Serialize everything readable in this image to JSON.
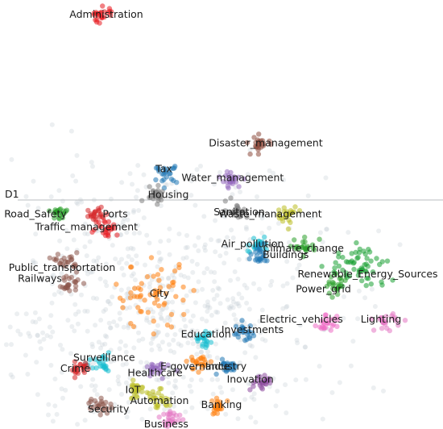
{
  "chart_data": {
    "type": "scatter",
    "title": "",
    "xlabel": "",
    "ylabel": "",
    "xlim": [
      -1.0,
      1.0
    ],
    "ylim": [
      -1.0,
      1.0
    ],
    "grid": false,
    "legend": "none",
    "axis_marker": {
      "label": "D1",
      "y": 0.0
    },
    "background_color": "#c9d2d6",
    "clusters": [
      {
        "name": "Administration",
        "color": "#e8191f",
        "x": -0.54,
        "y": 0.93,
        "label_x": -0.52,
        "label_y": 0.93
      },
      {
        "name": "Disaster_management",
        "color": "#8c4a3c",
        "x": 0.17,
        "y": 0.33,
        "label_x": 0.2,
        "label_y": 0.33
      },
      {
        "name": "Tax",
        "color": "#1f77b4",
        "x": -0.25,
        "y": 0.19,
        "label_x": -0.26,
        "label_y": 0.21
      },
      {
        "name": "Water_management",
        "color": "#9467bd",
        "x": 0.05,
        "y": 0.16,
        "label_x": 0.05,
        "label_y": 0.17
      },
      {
        "name": "Housing",
        "color": "#7f7f7f",
        "x": -0.3,
        "y": 0.1,
        "label_x": -0.24,
        "label_y": 0.09
      },
      {
        "name": "Road_Safety",
        "color": "#2ca02c",
        "x": -0.73,
        "y": 0.0,
        "label_x": -0.84,
        "label_y": 0.0
      },
      {
        "name": "Ports",
        "color": "#d62728",
        "x": -0.56,
        "y": 0.0,
        "label_x": -0.48,
        "label_y": 0.0
      },
      {
        "name": "Traffic_management",
        "color": "#e8191f",
        "x": -0.52,
        "y": -0.06,
        "label_x": -0.61,
        "label_y": -0.06
      },
      {
        "name": "Sanitation",
        "color": "#7f7f7f",
        "x": 0.07,
        "y": 0.02,
        "label_x": 0.08,
        "label_y": 0.01
      },
      {
        "name": "Waste_management",
        "color": "#bcbd22",
        "x": 0.3,
        "y": 0.0,
        "label_x": 0.22,
        "label_y": 0.0
      },
      {
        "name": "Air_pollution",
        "color": "#17becf",
        "x": 0.16,
        "y": -0.14,
        "label_x": 0.14,
        "label_y": -0.14
      },
      {
        "name": "Buildings",
        "color": "#1f77b4",
        "x": 0.18,
        "y": -0.19,
        "label_x": 0.29,
        "label_y": -0.19
      },
      {
        "name": "Climate_change",
        "color": "#2ca02c",
        "x": 0.38,
        "y": -0.15,
        "label_x": 0.37,
        "label_y": -0.16
      },
      {
        "name": "Renewable_Energy_Sources",
        "color": "#1aa033",
        "x": 0.62,
        "y": -0.25,
        "label_x": 0.66,
        "label_y": -0.28
      },
      {
        "name": "Power_grid",
        "color": "#2ca02c",
        "x": 0.52,
        "y": -0.33,
        "label_x": 0.46,
        "label_y": -0.35
      },
      {
        "name": "Public_transportation",
        "color": "#8c564b",
        "x": -0.7,
        "y": -0.22,
        "label_x": -0.72,
        "label_y": -0.25
      },
      {
        "name": "Railways",
        "color": "#8c564b",
        "x": -0.69,
        "y": -0.32,
        "label_x": -0.82,
        "label_y": -0.3
      },
      {
        "name": "City",
        "color": "#ff7f0e",
        "x": -0.31,
        "y": -0.38,
        "label_x": -0.28,
        "label_y": -0.37
      },
      {
        "name": "Electric_vehicles",
        "color": "#ef6cc5",
        "x": 0.48,
        "y": -0.51,
        "label_x": 0.36,
        "label_y": -0.49
      },
      {
        "name": "Lighting",
        "color": "#e377c2",
        "x": 0.74,
        "y": -0.5,
        "label_x": 0.72,
        "label_y": -0.49
      },
      {
        "name": "Investments",
        "color": "#1f77b4",
        "x": 0.1,
        "y": -0.55,
        "label_x": 0.14,
        "label_y": -0.54
      },
      {
        "name": "Education",
        "color": "#17becf",
        "x": -0.08,
        "y": -0.58,
        "label_x": -0.07,
        "label_y": -0.56
      },
      {
        "name": "Surveillance",
        "color": "#17becf",
        "x": -0.54,
        "y": -0.71,
        "label_x": -0.53,
        "label_y": -0.67
      },
      {
        "name": "Crime",
        "color": "#d62728",
        "x": -0.64,
        "y": -0.72,
        "label_x": -0.66,
        "label_y": -0.72
      },
      {
        "name": "E-governance",
        "color": "#ff7f0e",
        "x": -0.1,
        "y": -0.69,
        "label_x": -0.12,
        "label_y": -0.71
      },
      {
        "name": "Industry",
        "color": "#1f77b4",
        "x": 0.03,
        "y": -0.71,
        "label_x": 0.02,
        "label_y": -0.71
      },
      {
        "name": "Healthcare",
        "color": "#9467bd",
        "x": -0.29,
        "y": -0.73,
        "label_x": -0.3,
        "label_y": -0.74
      },
      {
        "name": "Inovation",
        "color": "#8c4a9e",
        "x": 0.17,
        "y": -0.78,
        "label_x": 0.13,
        "label_y": -0.77
      },
      {
        "name": "IoT",
        "color": "#bcbd22",
        "x": -0.38,
        "y": -0.82,
        "label_x": -0.4,
        "label_y": -0.82
      },
      {
        "name": "Automation",
        "color": "#bcbd22",
        "x": -0.28,
        "y": -0.86,
        "label_x": -0.28,
        "label_y": -0.87
      },
      {
        "name": "Banking",
        "color": "#ff7f0e",
        "x": -0.01,
        "y": -0.9,
        "label_x": 0.0,
        "label_y": -0.89
      },
      {
        "name": "Security",
        "color": "#8c564b",
        "x": -0.55,
        "y": -0.89,
        "label_x": -0.51,
        "label_y": -0.91
      },
      {
        "name": "Business",
        "color": "#e377c2",
        "x": -0.23,
        "y": -0.95,
        "label_x": -0.25,
        "label_y": -0.98
      }
    ]
  }
}
